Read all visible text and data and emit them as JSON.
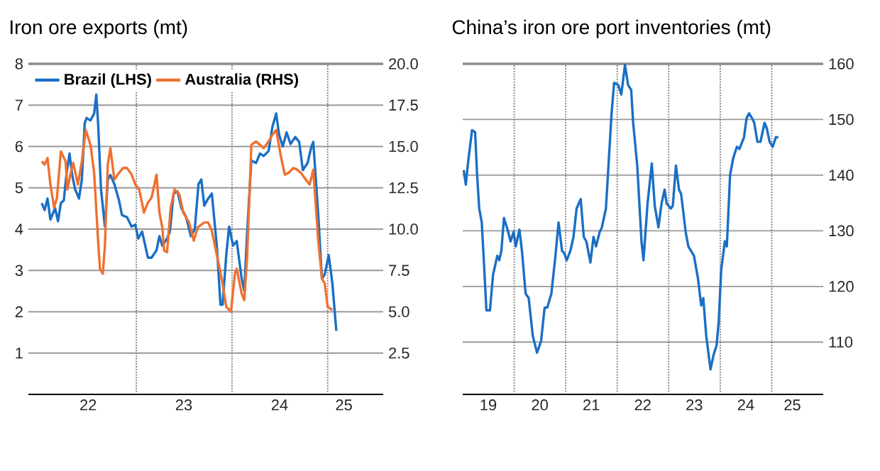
{
  "chart_data": [
    {
      "type": "line",
      "title": "Iron ore exports (mt)",
      "xlim": [
        "2021-11-15",
        "2025-08-01"
      ],
      "xticks": [
        {
          "value": "2022-07-01",
          "label": "22"
        },
        {
          "value": "2023-07-01",
          "label": "23"
        },
        {
          "value": "2024-07-01",
          "label": "24"
        },
        {
          "value": "2025-03-04",
          "label": "25"
        }
      ],
      "ylim": [
        0,
        8
      ],
      "yticks": [
        1,
        2,
        3,
        4,
        5,
        6,
        7,
        8
      ],
      "y2lim": [
        0,
        20
      ],
      "y2ticks": [
        2.5,
        {
          "value": 5,
          "label": "5.0"
        },
        7.5,
        {
          "value": 10,
          "label": "10.0"
        },
        12.5,
        {
          "value": 15,
          "label": "15.0"
        },
        17.5,
        {
          "value": 20,
          "label": "20.0"
        }
      ],
      "grid": "y",
      "legend": "top left",
      "ref_lines": [
        {
          "axis": "x",
          "value": "2023-01-01",
          "line_style": "dotted"
        },
        {
          "axis": "x",
          "value": "2024-01-01",
          "line_style": "dotted"
        },
        {
          "axis": "x",
          "value": "2025-01-01",
          "line_style": "dotted"
        }
      ],
      "series": [
        {
          "name": "Brazil (LHS)",
          "color": "#1a6fc4",
          "x": [
            "2022-01-05",
            "2022-01-16",
            "2022-01-27",
            "2022-02-07",
            "2022-02-25",
            "2022-03-08",
            "2022-03-19",
            "2022-03-30",
            "2022-04-10",
            "2022-04-21",
            "2022-05-01",
            "2022-05-12",
            "2022-05-27",
            "2022-06-07",
            "2022-06-18",
            "2022-06-25",
            "2022-07-10",
            "2022-07-24",
            "2022-08-01",
            "2022-08-08",
            "2022-08-19",
            "2022-09-03",
            "2022-09-14",
            "2022-09-24",
            "2022-10-09",
            "2022-10-27",
            "2022-11-07",
            "2022-11-26",
            "2022-12-14",
            "2022-12-28",
            "2023-01-08",
            "2023-01-23",
            "2023-02-14",
            "2023-02-28",
            "2023-03-19",
            "2023-03-30",
            "2023-04-10",
            "2023-04-28",
            "2023-05-09",
            "2023-05-23",
            "2023-06-07",
            "2023-06-22",
            "2023-07-10",
            "2023-07-28",
            "2023-08-12",
            "2023-08-26",
            "2023-09-06",
            "2023-09-17",
            "2023-10-02",
            "2023-10-16",
            "2023-11-04",
            "2023-11-18",
            "2023-11-26",
            "2023-12-10",
            "2023-12-21",
            "2024-01-05",
            "2024-01-19",
            "2024-02-07",
            "2024-02-17",
            "2024-02-28",
            "2024-03-15",
            "2024-04-02",
            "2024-04-17",
            "2024-05-01",
            "2024-05-20",
            "2024-06-03",
            "2024-06-18",
            "2024-06-29",
            "2024-07-13",
            "2024-07-28",
            "2024-08-12",
            "2024-08-30",
            "2024-09-14",
            "2024-09-28",
            "2024-10-16",
            "2024-10-31",
            "2024-11-07",
            "2024-11-26",
            "2024-12-10",
            "2024-12-21",
            "2025-01-05",
            "2025-01-19",
            "2025-02-03"
          ],
          "values": [
            4.63,
            4.46,
            4.74,
            4.23,
            4.51,
            4.19,
            4.63,
            4.69,
            5.37,
            5.83,
            5.31,
            4.97,
            4.74,
            5.2,
            6.57,
            6.69,
            6.63,
            6.8,
            7.26,
            6.57,
            4.97,
            4.06,
            5.2,
            5.31,
            5.09,
            4.69,
            4.34,
            4.29,
            4.06,
            4.11,
            3.77,
            3.94,
            3.31,
            3.31,
            3.49,
            3.83,
            3.6,
            3.77,
            3.94,
            4.86,
            4.91,
            4.51,
            4.29,
            3.83,
            4.0,
            5.09,
            5.2,
            4.57,
            4.74,
            4.86,
            3.6,
            2.17,
            2.17,
            3.37,
            4.06,
            3.6,
            3.71,
            2.8,
            2.51,
            3.94,
            5.66,
            5.6,
            5.83,
            5.77,
            5.89,
            6.46,
            6.8,
            6.29,
            6.0,
            6.34,
            6.06,
            6.23,
            6.11,
            5.43,
            5.6,
            6.0,
            6.11,
            4.34,
            2.8,
            2.91,
            3.37,
            2.69,
            1.54
          ]
        },
        {
          "name": "Australia (RHS)",
          "color": "#f07030",
          "axis": "y2",
          "x": [
            "2022-01-05",
            "2022-01-16",
            "2022-01-27",
            "2022-02-07",
            "2022-02-21",
            "2022-03-04",
            "2022-03-19",
            "2022-04-06",
            "2022-04-13",
            "2022-04-28",
            "2022-05-05",
            "2022-05-23",
            "2022-06-07",
            "2022-06-22",
            "2022-07-10",
            "2022-07-24",
            "2022-08-08",
            "2022-08-15",
            "2022-08-26",
            "2022-09-03",
            "2022-09-14",
            "2022-09-24",
            "2022-10-09",
            "2022-10-27",
            "2022-11-11",
            "2022-11-26",
            "2022-12-14",
            "2022-12-28",
            "2023-01-12",
            "2023-01-30",
            "2023-02-14",
            "2023-02-28",
            "2023-03-19",
            "2023-03-30",
            "2023-04-10",
            "2023-04-17",
            "2023-04-28",
            "2023-05-12",
            "2023-05-27",
            "2023-06-14",
            "2023-06-29",
            "2023-07-21",
            "2023-08-08",
            "2023-08-23",
            "2023-09-17",
            "2023-10-02",
            "2023-10-16",
            "2023-11-11",
            "2023-11-26",
            "2023-12-10",
            "2023-12-28",
            "2024-01-12",
            "2024-01-19",
            "2024-02-07",
            "2024-02-17",
            "2024-02-28",
            "2024-03-15",
            "2024-04-02",
            "2024-04-17",
            "2024-05-01",
            "2024-05-20",
            "2024-06-03",
            "2024-06-18",
            "2024-07-06",
            "2024-07-21",
            "2024-08-04",
            "2024-08-23",
            "2024-09-06",
            "2024-09-21",
            "2024-10-09",
            "2024-10-24",
            "2024-11-07",
            "2024-11-26",
            "2024-12-10",
            "2024-12-21",
            "2025-01-01",
            "2025-01-19"
          ],
          "values": [
            14.1,
            13.9,
            14.3,
            12.7,
            11.3,
            11.9,
            14.7,
            14.1,
            12.4,
            13.6,
            14.0,
            12.7,
            14.1,
            16.0,
            15.1,
            13.4,
            9.3,
            7.6,
            7.3,
            9.0,
            13.9,
            14.9,
            13.0,
            13.4,
            13.7,
            13.7,
            13.3,
            12.7,
            12.4,
            11.0,
            11.6,
            11.9,
            13.3,
            11.0,
            10.1,
            8.7,
            8.6,
            11.3,
            12.4,
            12.1,
            11.0,
            10.4,
            9.3,
            10.1,
            10.4,
            10.4,
            9.9,
            7.9,
            6.7,
            5.3,
            5.0,
            7.3,
            7.6,
            6.1,
            5.7,
            8.4,
            15.1,
            15.3,
            15.1,
            14.9,
            15.3,
            15.7,
            16.0,
            14.4,
            13.3,
            13.4,
            13.7,
            13.6,
            13.4,
            13.0,
            12.7,
            13.6,
            9.3,
            7.0,
            6.7,
            5.3,
            5.1
          ]
        }
      ]
    },
    {
      "type": "line",
      "title": "China’s iron ore port inventories (mt)",
      "xlim": [
        "2019-01-01",
        "2026-01-01"
      ],
      "xticks": [
        {
          "value": "2019-07-01",
          "label": "19"
        },
        {
          "value": "2020-07-01",
          "label": "20"
        },
        {
          "value": "2021-07-01",
          "label": "21"
        },
        {
          "value": "2022-07-01",
          "label": "22"
        },
        {
          "value": "2023-07-01",
          "label": "23"
        },
        {
          "value": "2024-07-01",
          "label": "24"
        },
        {
          "value": "2025-05-27",
          "label": "25"
        }
      ],
      "y2lim": [
        100.6,
        160
      ],
      "y2ticks": [
        110,
        120,
        130,
        140,
        150,
        160
      ],
      "grid": "y",
      "ref_lines": [
        {
          "axis": "x",
          "value": "2020-01-01",
          "line_style": "dotted"
        },
        {
          "axis": "x",
          "value": "2021-01-01",
          "line_style": "dotted"
        },
        {
          "axis": "x",
          "value": "2022-01-01",
          "line_style": "dotted"
        },
        {
          "axis": "x",
          "value": "2023-01-01",
          "line_style": "dotted"
        },
        {
          "axis": "x",
          "value": "2024-01-01",
          "line_style": "dotted"
        },
        {
          "axis": "x",
          "value": "2025-01-01",
          "line_style": "dotted"
        }
      ],
      "series": [
        {
          "color": "#1a6fc4",
          "axis": "y2",
          "x": [
            "2019-01-08",
            "2019-01-23",
            "2019-02-07",
            "2019-03-08",
            "2019-03-30",
            "2019-04-13",
            "2019-04-28",
            "2019-05-16",
            "2019-06-03",
            "2019-06-18",
            "2019-07-13",
            "2019-08-04",
            "2019-09-03",
            "2019-09-17",
            "2019-10-02",
            "2019-10-20",
            "2019-11-15",
            "2019-12-06",
            "2019-12-28",
            "2020-01-12",
            "2020-02-07",
            "2020-02-25",
            "2020-03-22",
            "2020-04-13",
            "2020-05-12",
            "2020-06-11",
            "2020-07-10",
            "2020-08-04",
            "2020-08-23",
            "2020-09-21",
            "2020-10-20",
            "2020-11-11",
            "2020-12-06",
            "2020-12-21",
            "2021-01-08",
            "2021-02-03",
            "2021-02-25",
            "2021-03-19",
            "2021-04-17",
            "2021-05-09",
            "2021-05-27",
            "2021-06-25",
            "2021-07-17",
            "2021-08-04",
            "2021-08-30",
            "2021-09-14",
            "2021-10-13",
            "2021-10-27",
            "2021-11-22",
            "2021-12-10",
            "2022-01-08",
            "2022-01-30",
            "2022-02-25",
            "2022-03-19",
            "2022-04-10",
            "2022-04-24",
            "2022-05-23",
            "2022-06-22",
            "2022-07-06",
            "2022-08-04",
            "2022-09-03",
            "2022-09-24",
            "2022-10-20",
            "2022-11-11",
            "2022-12-03",
            "2022-12-17",
            "2023-01-16",
            "2023-01-30",
            "2023-02-21",
            "2023-03-15",
            "2023-03-30",
            "2023-05-01",
            "2023-05-20",
            "2023-06-29",
            "2023-07-28",
            "2023-08-19",
            "2023-09-03",
            "2023-09-24",
            "2023-10-24",
            "2023-11-15",
            "2023-12-06",
            "2023-12-21",
            "2024-01-08",
            "2024-02-03",
            "2024-02-17",
            "2024-03-11",
            "2024-04-02",
            "2024-04-28",
            "2024-05-16",
            "2024-06-18",
            "2024-07-06",
            "2024-07-24",
            "2024-08-15",
            "2024-08-30",
            "2024-09-21",
            "2024-10-13",
            "2024-11-11",
            "2024-11-26",
            "2024-12-17",
            "2025-01-08",
            "2025-01-30",
            "2025-02-17"
          ],
          "values": [
            140.9,
            138.3,
            142.1,
            148.1,
            147.7,
            140.0,
            134.0,
            131.5,
            123.0,
            115.7,
            115.7,
            122.1,
            125.5,
            124.7,
            126.4,
            132.3,
            130.2,
            128.1,
            129.8,
            127.2,
            130.2,
            126.4,
            118.7,
            117.9,
            111.1,
            108.1,
            110.2,
            116.2,
            116.2,
            118.7,
            125.5,
            131.5,
            126.4,
            126.0,
            124.7,
            126.4,
            128.9,
            134.0,
            135.7,
            128.9,
            128.1,
            124.3,
            128.9,
            127.2,
            129.8,
            130.6,
            134.0,
            140.0,
            151.1,
            156.6,
            156.2,
            154.5,
            159.8,
            156.2,
            155.3,
            149.4,
            141.7,
            128.1,
            124.7,
            134.9,
            142.1,
            134.5,
            130.6,
            134.9,
            137.4,
            134.9,
            134.0,
            134.5,
            141.7,
            137.4,
            136.6,
            129.8,
            127.2,
            125.5,
            121.3,
            116.6,
            117.9,
            111.1,
            105.1,
            107.7,
            109.4,
            113.6,
            123.0,
            128.1,
            127.2,
            140.0,
            143.0,
            145.1,
            144.7,
            146.8,
            150.2,
            151.1,
            150.2,
            149.4,
            146.0,
            146.0,
            149.4,
            148.5,
            146.0,
            145.1,
            146.8,
            146.8
          ]
        }
      ]
    }
  ]
}
